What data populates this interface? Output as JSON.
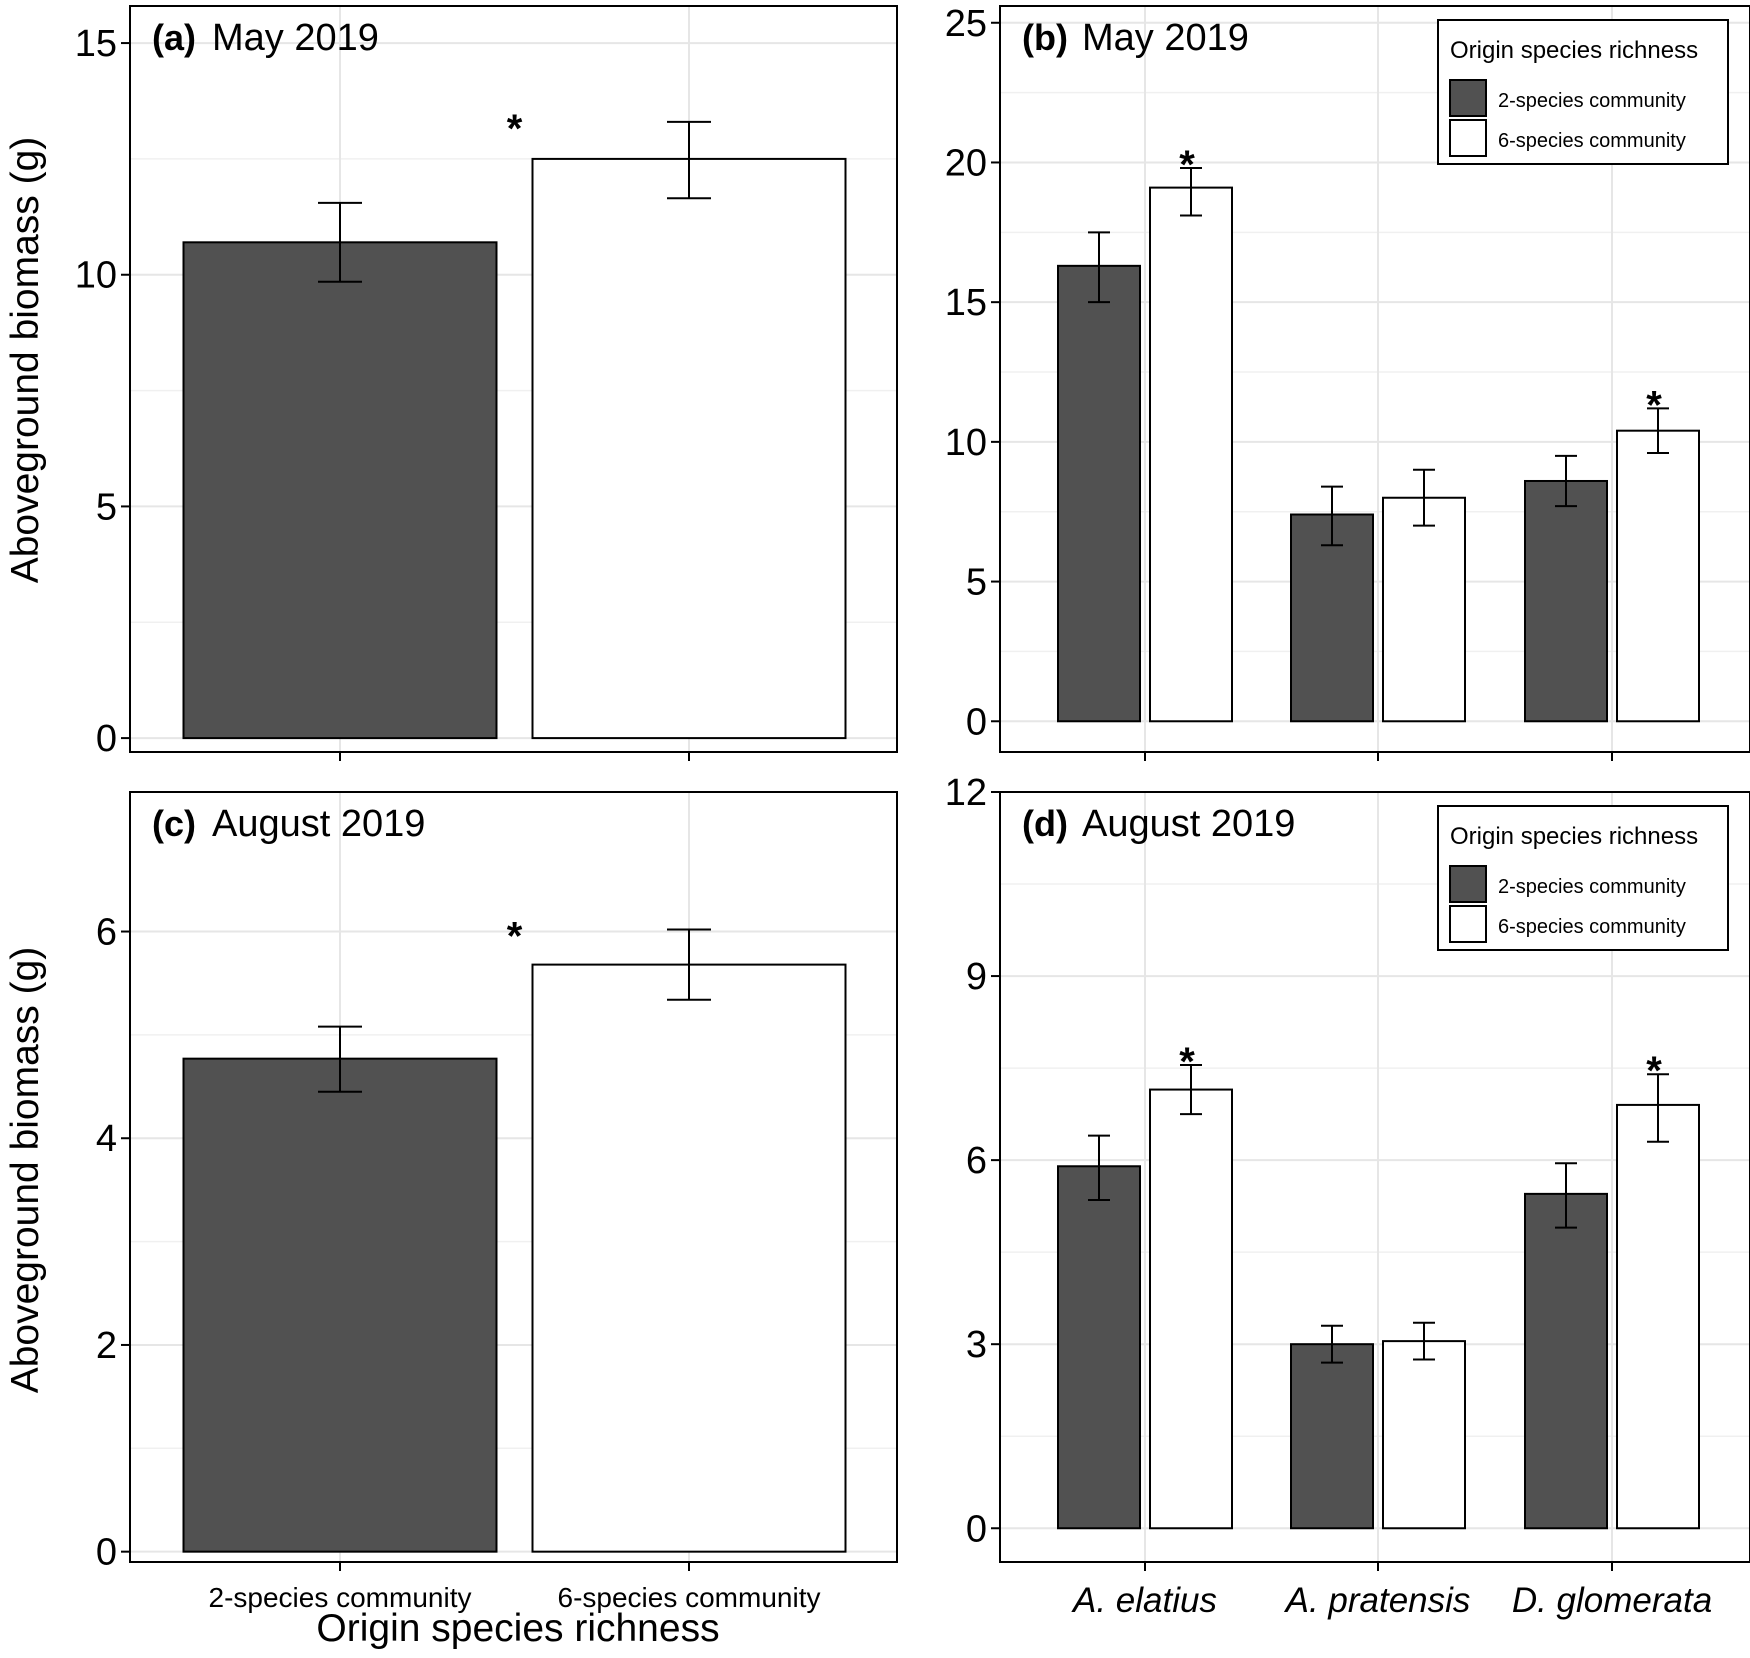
{
  "figure": {
    "ylabel_top": "Aboveground biomass (g)",
    "ylabel_bottom": "Aboveground biomass (g)",
    "xlabel_left": "Origin species richness"
  },
  "colors": {
    "two_species": "#515151",
    "six_species": "#ffffff",
    "grid": "#e6e6e6",
    "outline": "#000000"
  },
  "chart_data": [
    {
      "panel": "a",
      "type": "bar",
      "tag": "(a)",
      "title": "May 2019",
      "categories": [
        "2-species community",
        "6-species community"
      ],
      "values": [
        10.7,
        12.5
      ],
      "error": [
        [
          9.85,
          11.55
        ],
        [
          11.65,
          13.3
        ]
      ],
      "significance": [
        "*"
      ],
      "ylim": [
        -0.3,
        15.8
      ],
      "yticks": [
        0,
        5,
        10,
        15
      ],
      "show_x_tick_labels": false,
      "grid": true
    },
    {
      "panel": "b",
      "type": "bar",
      "tag": "(b)",
      "title": "May 2019",
      "categories": [
        "A. elatius",
        "A. pratensis",
        "D. glomerata"
      ],
      "series": [
        {
          "name": "2-species community",
          "values": [
            16.3,
            7.4,
            8.6
          ],
          "error": [
            [
              15.0,
              17.5
            ],
            [
              6.3,
              8.4
            ],
            [
              7.7,
              9.5
            ]
          ]
        },
        {
          "name": "6-species community",
          "values": [
            19.1,
            8.0,
            10.4
          ],
          "error": [
            [
              18.1,
              19.8
            ],
            [
              7.0,
              9.0
            ],
            [
              9.6,
              11.2
            ]
          ]
        }
      ],
      "significance": [
        "*",
        "",
        "*"
      ],
      "legend_title": "Origin species richness",
      "legend_position": "top-right",
      "ylim": [
        -1.1,
        25.6
      ],
      "yticks": [
        0,
        5,
        10,
        15,
        20,
        25
      ],
      "show_x_tick_labels": false,
      "grid": true
    },
    {
      "panel": "c",
      "type": "bar",
      "tag": "(c)",
      "title": "August 2019",
      "categories": [
        "2-species community",
        "6-species community"
      ],
      "values": [
        4.77,
        5.68
      ],
      "error": [
        [
          4.45,
          5.08
        ],
        [
          5.34,
          6.02
        ]
      ],
      "significance": [
        "*"
      ],
      "ylim": [
        -0.1,
        7.35
      ],
      "yticks": [
        0,
        2,
        4,
        6
      ],
      "show_x_tick_labels": true,
      "grid": true
    },
    {
      "panel": "d",
      "type": "bar",
      "tag": "(d)",
      "title": "August 2019",
      "categories": [
        "A. elatius",
        "A. pratensis",
        "D. glomerata"
      ],
      "series": [
        {
          "name": "2-species community",
          "values": [
            5.9,
            3.0,
            5.45
          ],
          "error": [
            [
              5.35,
              6.4
            ],
            [
              2.7,
              3.3
            ],
            [
              4.9,
              5.95
            ]
          ]
        },
        {
          "name": "6-species community",
          "values": [
            7.15,
            3.05,
            6.9
          ],
          "error": [
            [
              6.75,
              7.55
            ],
            [
              2.75,
              3.35
            ],
            [
              6.3,
              7.4
            ]
          ]
        }
      ],
      "significance": [
        "*",
        "",
        "*"
      ],
      "legend_title": "Origin species richness",
      "legend_position": "top-right",
      "ylim": [
        -0.55,
        12.0
      ],
      "yticks": [
        0,
        3,
        6,
        9,
        12
      ],
      "show_x_tick_labels": true,
      "grid": true
    }
  ]
}
